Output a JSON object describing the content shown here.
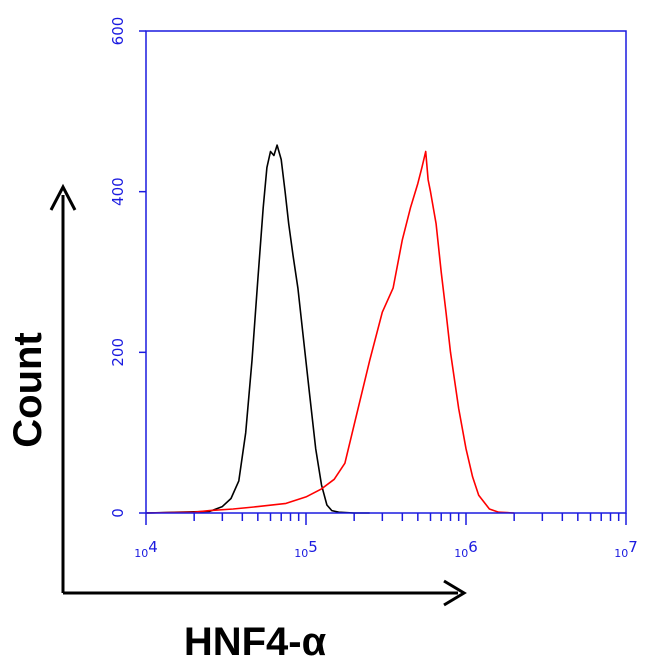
{
  "chart_data": {
    "type": "line",
    "title": "",
    "xlabel": "HNF4-α",
    "ylabel": "Count",
    "x_scale": "log",
    "xlim": [
      10000,
      10000000
    ],
    "ylim": [
      0,
      600
    ],
    "y_ticks": [
      0,
      200,
      400,
      600
    ],
    "y_tick_labels": [
      "0",
      "200",
      "400",
      "600"
    ],
    "x_ticks": [
      {
        "base": "10",
        "exp": "4"
      },
      {
        "base": "10",
        "exp": "5"
      },
      {
        "base": "10",
        "exp": "6"
      },
      {
        "base": "10",
        "exp": "7"
      }
    ],
    "grid": false,
    "legend": "none",
    "series": [
      {
        "color": "#000000",
        "points": [
          [
            10000,
            0
          ],
          [
            16000,
            1
          ],
          [
            25000,
            2
          ],
          [
            30000,
            8
          ],
          [
            34000,
            18
          ],
          [
            38000,
            40
          ],
          [
            42000,
            100
          ],
          [
            46000,
            190
          ],
          [
            50000,
            290
          ],
          [
            54000,
            380
          ],
          [
            57000,
            430
          ],
          [
            60000,
            450
          ],
          [
            63000,
            445
          ],
          [
            66000,
            458
          ],
          [
            70000,
            440
          ],
          [
            74000,
            400
          ],
          [
            78000,
            360
          ],
          [
            83000,
            320
          ],
          [
            89000,
            280
          ],
          [
            96000,
            220
          ],
          [
            105000,
            150
          ],
          [
            115000,
            80
          ],
          [
            125000,
            35
          ],
          [
            135000,
            10
          ],
          [
            145000,
            3
          ],
          [
            160000,
            1
          ],
          [
            200000,
            0
          ],
          [
            250000,
            0
          ]
        ]
      },
      {
        "color": "#ff0000",
        "points": [
          [
            10000,
            0
          ],
          [
            20000,
            1
          ],
          [
            25000,
            3
          ],
          [
            35000,
            5
          ],
          [
            50000,
            8
          ],
          [
            75000,
            12
          ],
          [
            100000,
            20
          ],
          [
            125000,
            30
          ],
          [
            150000,
            42
          ],
          [
            175000,
            62
          ],
          [
            200000,
            110
          ],
          [
            250000,
            190
          ],
          [
            300000,
            250
          ],
          [
            350000,
            280
          ],
          [
            400000,
            340
          ],
          [
            450000,
            380
          ],
          [
            500000,
            410
          ],
          [
            530000,
            430
          ],
          [
            560000,
            450
          ],
          [
            580000,
            415
          ],
          [
            600000,
            400
          ],
          [
            650000,
            360
          ],
          [
            700000,
            300
          ],
          [
            750000,
            250
          ],
          [
            800000,
            200
          ],
          [
            900000,
            130
          ],
          [
            1000000,
            80
          ],
          [
            1100000,
            45
          ],
          [
            1200000,
            22
          ],
          [
            1400000,
            5
          ],
          [
            1600000,
            1
          ],
          [
            2000000,
            0
          ]
        ]
      }
    ]
  }
}
